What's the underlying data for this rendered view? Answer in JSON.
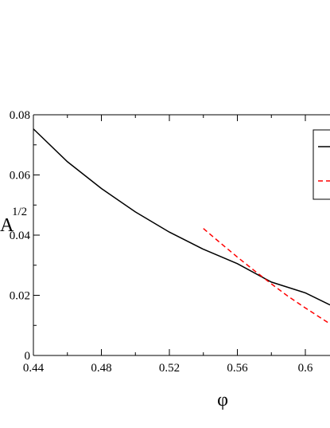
{
  "chart_data": {
    "type": "line",
    "title": "",
    "xlabel": "φ",
    "ylabel": "A",
    "ylabel_superscript": "1/2",
    "xlim": [
      0.44,
      0.6145
    ],
    "ylim": [
      0,
      0.08
    ],
    "x_ticks": [
      "0.44",
      "0.48",
      "0.52",
      "0.56",
      "0.6"
    ],
    "y_ticks": [
      "0",
      "0.02",
      "0.04",
      "0.06",
      "0.08"
    ],
    "x_tick_values": [
      0.44,
      0.48,
      0.52,
      0.56,
      0.6
    ],
    "y_tick_values": [
      0,
      0.02,
      0.04,
      0.06,
      0.08
    ],
    "x_minor_tick_values": [
      0.46,
      0.5,
      0.54,
      0.58
    ],
    "y_minor_tick_values": [
      0.01,
      0.03,
      0.05,
      0.07
    ],
    "grid": false,
    "legend_position": "top-right",
    "series": [
      {
        "color": "#000000",
        "dash": "solid",
        "x": [
          0.44,
          0.46,
          0.48,
          0.5,
          0.52,
          0.54,
          0.56,
          0.58,
          0.6,
          0.6145
        ],
        "y": [
          0.0753,
          0.0644,
          0.0555,
          0.0477,
          0.041,
          0.0353,
          0.0305,
          0.0244,
          0.0208,
          0.0168
        ]
      },
      {
        "color": "#ff0000",
        "dash": "dashed",
        "x": [
          0.54,
          0.55,
          0.56,
          0.57,
          0.58,
          0.59,
          0.6,
          0.6145
        ],
        "y": [
          0.0422,
          0.0374,
          0.0327,
          0.0282,
          0.0238,
          0.0196,
          0.0158,
          0.0105
        ]
      }
    ]
  }
}
